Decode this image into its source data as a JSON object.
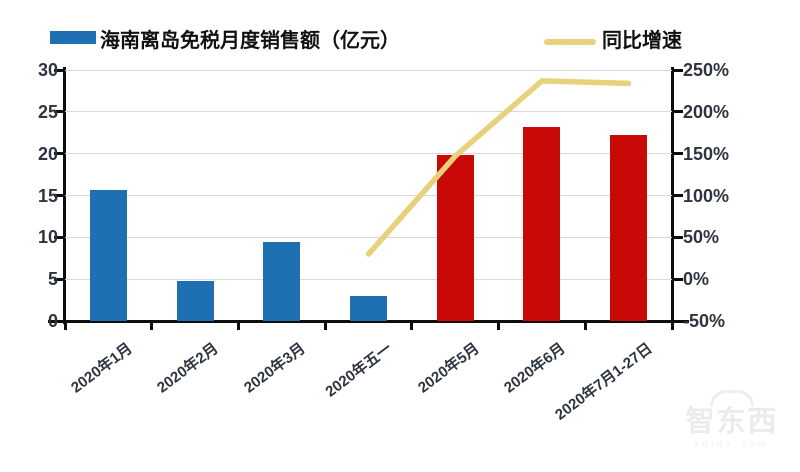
{
  "legend": {
    "bar_label": "海南离岛免税月度销售额（亿元）",
    "line_label": "同比增速"
  },
  "chart_data": {
    "type": "bar+line combo",
    "categories": [
      "2020年1月",
      "2020年2月",
      "2020年3月",
      "2020年五一",
      "2020年5月",
      "2020年6月",
      "2020年7月1-27日"
    ],
    "series": [
      {
        "name": "海南离岛免税月度销售额（亿元）",
        "type": "bar",
        "axis": "left",
        "unit": "亿元",
        "values": [
          15.6,
          4.8,
          9.4,
          3.0,
          19.8,
          23.2,
          22.2
        ],
        "point_colors": [
          "#1f70b2",
          "#1f70b2",
          "#1f70b2",
          "#1f70b2",
          "#c90808",
          "#c90808",
          "#c90808"
        ]
      },
      {
        "name": "同比增速",
        "type": "line",
        "axis": "right",
        "unit": "%",
        "values": [
          null,
          null,
          null,
          30,
          147,
          237,
          234
        ],
        "color": "#e7d17b"
      }
    ],
    "left_axis": {
      "min": 0,
      "max": 30,
      "ticks": [
        0,
        5,
        10,
        15,
        20,
        25,
        30
      ]
    },
    "right_axis": {
      "min": -50,
      "max": 250,
      "tick_values": [
        -50,
        0,
        50,
        100,
        150,
        200,
        250
      ],
      "tick_labels": [
        "-50%",
        "0%",
        "50%",
        "100%",
        "150%",
        "200%",
        "250%"
      ]
    },
    "grid": true,
    "legend_position": "top"
  },
  "colors": {
    "bar_blue": "#1f70b2",
    "bar_red": "#c90808",
    "line_yellow": "#e7d17b",
    "gridline": "#d9d9d9",
    "axis": "#0d0d0d",
    "tick_text": "#2e3440"
  },
  "watermark": {
    "brand": "智东西",
    "domain": "zhidx.com"
  }
}
